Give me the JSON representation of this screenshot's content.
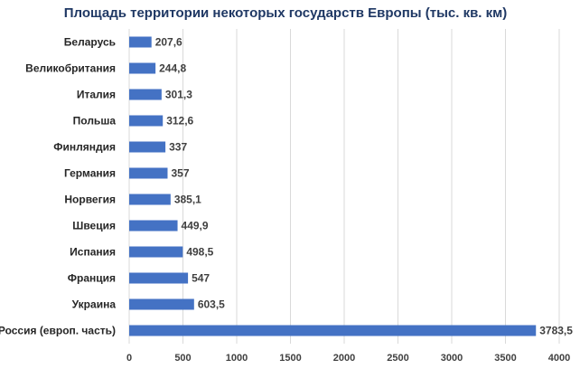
{
  "chart_data": {
    "type": "bar",
    "orientation": "horizontal",
    "title": "Площадь территории некоторых государств Европы (тыс. кв. км)",
    "categories": [
      "Беларусь",
      "Великобритания",
      "Италия",
      "Польша",
      "Финляндия",
      "Германия",
      "Норвегия",
      "Швеция",
      "Испания",
      "Франция",
      "Украина",
      "Россия (европ. часть)"
    ],
    "values": [
      207.6,
      244.8,
      301.3,
      312.6,
      337,
      357,
      385.1,
      449.9,
      498.5,
      547,
      603.5,
      3783.5
    ],
    "value_labels": [
      "207,6",
      "244,8",
      "301,3",
      "312,6",
      "337",
      "357",
      "385,1",
      "449,9",
      "498,5",
      "547",
      "603,5",
      "3783,5"
    ],
    "xlim": [
      0,
      4000
    ],
    "xticks": [
      0,
      500,
      1000,
      1500,
      2000,
      2500,
      3000,
      3500,
      4000
    ],
    "xlabel": "",
    "ylabel": "",
    "grid": "vertical",
    "legend": "none",
    "bar_color": "#4472c4"
  }
}
